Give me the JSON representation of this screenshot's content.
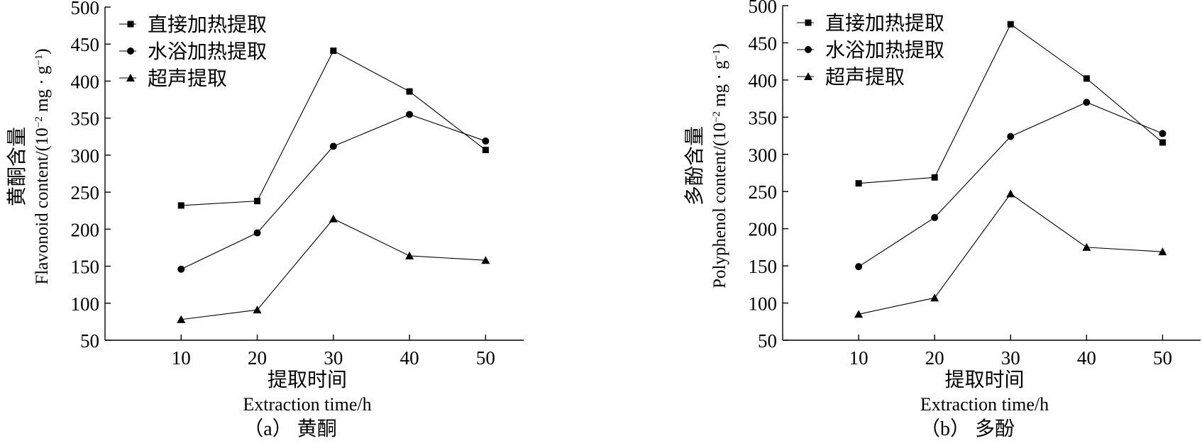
{
  "chart_data": [
    {
      "type": "line",
      "panel": "a",
      "x": [
        10,
        20,
        30,
        40,
        50
      ],
      "xlim": [
        0,
        55
      ],
      "ylim": [
        50,
        500
      ],
      "xticks": [
        10,
        20,
        30,
        40,
        50
      ],
      "yticks": [
        50,
        100,
        150,
        200,
        250,
        300,
        350,
        400,
        450,
        500
      ],
      "xlabel_cn": "提取时间",
      "xlabel_en": "Extraction time/h",
      "ylabel_cn": "黄酮含量",
      "ylabel_en": "Flavonoid content/(10",
      "ylabel_exp1": "−2",
      "ylabel_mid": " mg · g",
      "ylabel_exp2": "−1",
      "ylabel_end": ")",
      "caption": "（a） 黄酮",
      "legend_position": "top-left",
      "series": [
        {
          "name": "直接加热提取",
          "marker": "square",
          "values": [
            232,
            238,
            441,
            386,
            307
          ]
        },
        {
          "name": "水浴加热提取",
          "marker": "circle",
          "values": [
            146,
            195,
            312,
            355,
            319
          ]
        },
        {
          "name": "超声提取",
          "marker": "triangle",
          "values": [
            78,
            91,
            214,
            164,
            158
          ]
        }
      ]
    },
    {
      "type": "line",
      "panel": "b",
      "x": [
        10,
        20,
        30,
        40,
        50
      ],
      "xlim": [
        0,
        55
      ],
      "ylim": [
        50,
        500
      ],
      "xticks": [
        10,
        20,
        30,
        40,
        50
      ],
      "yticks": [
        50,
        100,
        150,
        200,
        250,
        300,
        350,
        400,
        450,
        500
      ],
      "xlabel_cn": "提取时间",
      "xlabel_en": "Extraction time/h",
      "ylabel_cn": "多酚含量",
      "ylabel_en": "Polyphenol content/(10",
      "ylabel_exp1": "−2",
      "ylabel_mid": " mg · g",
      "ylabel_exp2": "−1",
      "ylabel_end": ")",
      "caption": "（b） 多酚",
      "legend_position": "top-left",
      "series": [
        {
          "name": "直接加热提取",
          "marker": "square",
          "values": [
            261,
            269,
            475,
            402,
            316
          ]
        },
        {
          "name": "水浴加热提取",
          "marker": "circle",
          "values": [
            149,
            215,
            324,
            370,
            328
          ]
        },
        {
          "name": "超声提取",
          "marker": "triangle",
          "values": [
            85,
            107,
            247,
            175,
            169
          ]
        }
      ]
    }
  ]
}
